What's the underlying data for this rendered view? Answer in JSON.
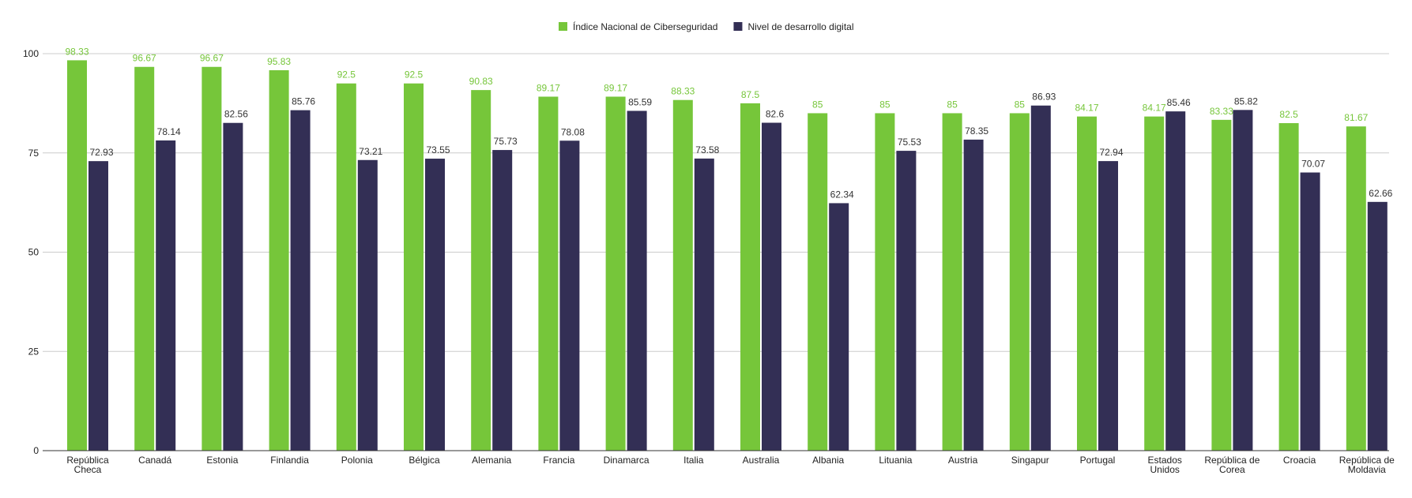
{
  "chart_data": {
    "type": "bar",
    "categories": [
      "República Checa",
      "Canadá",
      "Estonia",
      "Finlandia",
      "Polonia",
      "Bélgica",
      "Alemania",
      "Francia",
      "Dinamarca",
      "Italia",
      "Australia",
      "Albania",
      "Lituania",
      "Austria",
      "Singapur",
      "Portugal",
      "Estados Unidos",
      "República de Corea",
      "Croacia",
      "República de Moldavia"
    ],
    "category_lines": [
      [
        "República",
        "Checa"
      ],
      [
        "Canadá"
      ],
      [
        "Estonia"
      ],
      [
        "Finlandia"
      ],
      [
        "Polonia"
      ],
      [
        "Bélgica"
      ],
      [
        "Alemania"
      ],
      [
        "Francia"
      ],
      [
        "Dinamarca"
      ],
      [
        "Italia"
      ],
      [
        "Australia"
      ],
      [
        "Albania"
      ],
      [
        "Lituania"
      ],
      [
        "Austria"
      ],
      [
        "Singapur"
      ],
      [
        "Portugal"
      ],
      [
        "Estados",
        "Unidos"
      ],
      [
        "República de",
        "Corea"
      ],
      [
        "Croacia"
      ],
      [
        "República de",
        "Moldavia"
      ]
    ],
    "series": [
      {
        "name": "Índice Nacional de Ciberseguridad",
        "color": "#76c63a",
        "values": [
          98.33,
          96.67,
          96.67,
          95.83,
          92.5,
          92.5,
          90.83,
          89.17,
          89.17,
          88.33,
          87.5,
          85,
          85,
          85,
          85,
          84.17,
          84.17,
          83.33,
          82.5,
          81.67
        ],
        "labels": [
          "98.33",
          "96.67",
          "96.67",
          "95.83",
          "92.5",
          "92.5",
          "90.83",
          "89.17",
          "89.17",
          "88.33",
          "87.5",
          "85",
          "85",
          "85",
          "85",
          "84.17",
          "84.17",
          "83.33",
          "82.5",
          "81.67"
        ]
      },
      {
        "name": "Nivel de desarrollo digital",
        "color": "#332f55",
        "values": [
          72.93,
          78.14,
          82.56,
          85.76,
          73.21,
          73.55,
          75.73,
          78.08,
          85.59,
          73.58,
          82.6,
          62.34,
          75.53,
          78.35,
          86.93,
          72.94,
          85.46,
          85.82,
          70.07,
          62.66
        ],
        "labels": [
          "72.93",
          "78.14",
          "82.56",
          "85.76",
          "73.21",
          "73.55",
          "75.73",
          "78.08",
          "85.59",
          "73.58",
          "82.6",
          "62.34",
          "75.53",
          "78.35",
          "86.93",
          "72.94",
          "85.46",
          "85.82",
          "70.07",
          "62.66"
        ]
      }
    ],
    "ylim": [
      0,
      100
    ],
    "yticks": [
      0,
      25,
      50,
      75,
      100
    ],
    "ytick_labels": [
      "0",
      "25",
      "50",
      "75",
      "100"
    ],
    "grid": true,
    "legend_position": "top-center",
    "title": "",
    "xlabel": "",
    "ylabel": ""
  }
}
